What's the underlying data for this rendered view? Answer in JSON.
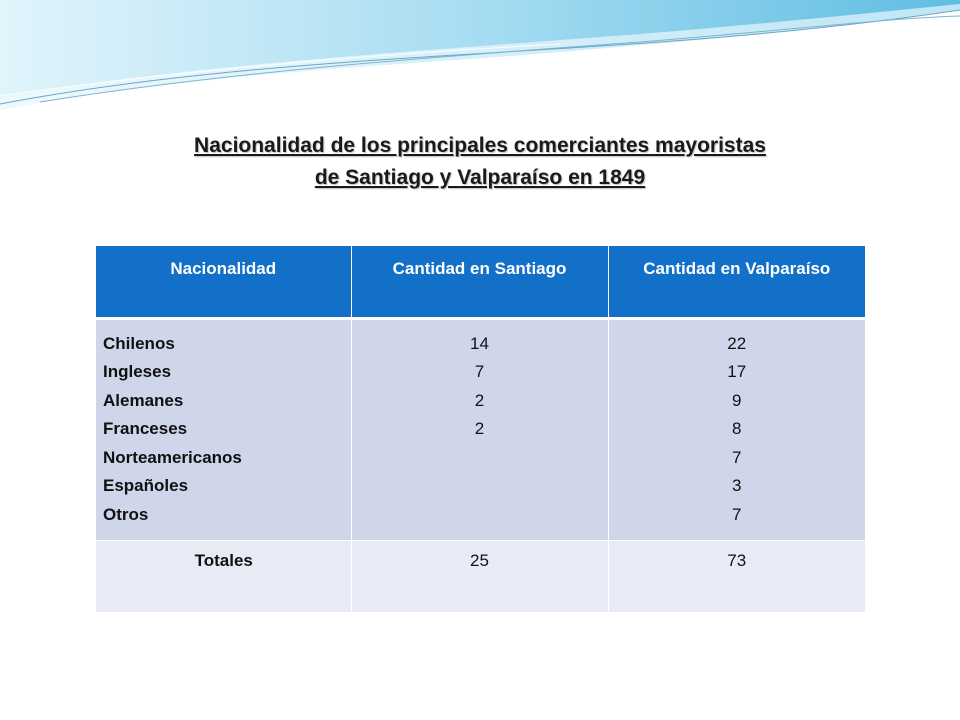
{
  "title": {
    "line1": "Nacionalidad de los principales comerciantes mayoristas",
    "line2": "de Santiago y Valparaíso en 1849"
  },
  "table": {
    "headers": [
      "Nacionalidad",
      "Cantidad en Santiago",
      "Cantidad en Valparaíso"
    ],
    "nationalities": [
      "Chilenos",
      "Ingleses",
      "Alemanes",
      "Franceses",
      "Norteamericanos",
      "Españoles",
      "Otros"
    ],
    "santiago": [
      "14",
      "7",
      "2",
      "2"
    ],
    "valparaiso": [
      "22",
      "17",
      "9",
      "8",
      "7",
      "3",
      "7"
    ],
    "totals": {
      "label": "Totales",
      "santiago": "25",
      "valparaiso": "73"
    }
  },
  "colors": {
    "header_bg": "#1270c8",
    "body_bg": "#cfd6ea",
    "totals_bg": "#e8ebf5",
    "wave_accent": "#5bc8e8"
  }
}
